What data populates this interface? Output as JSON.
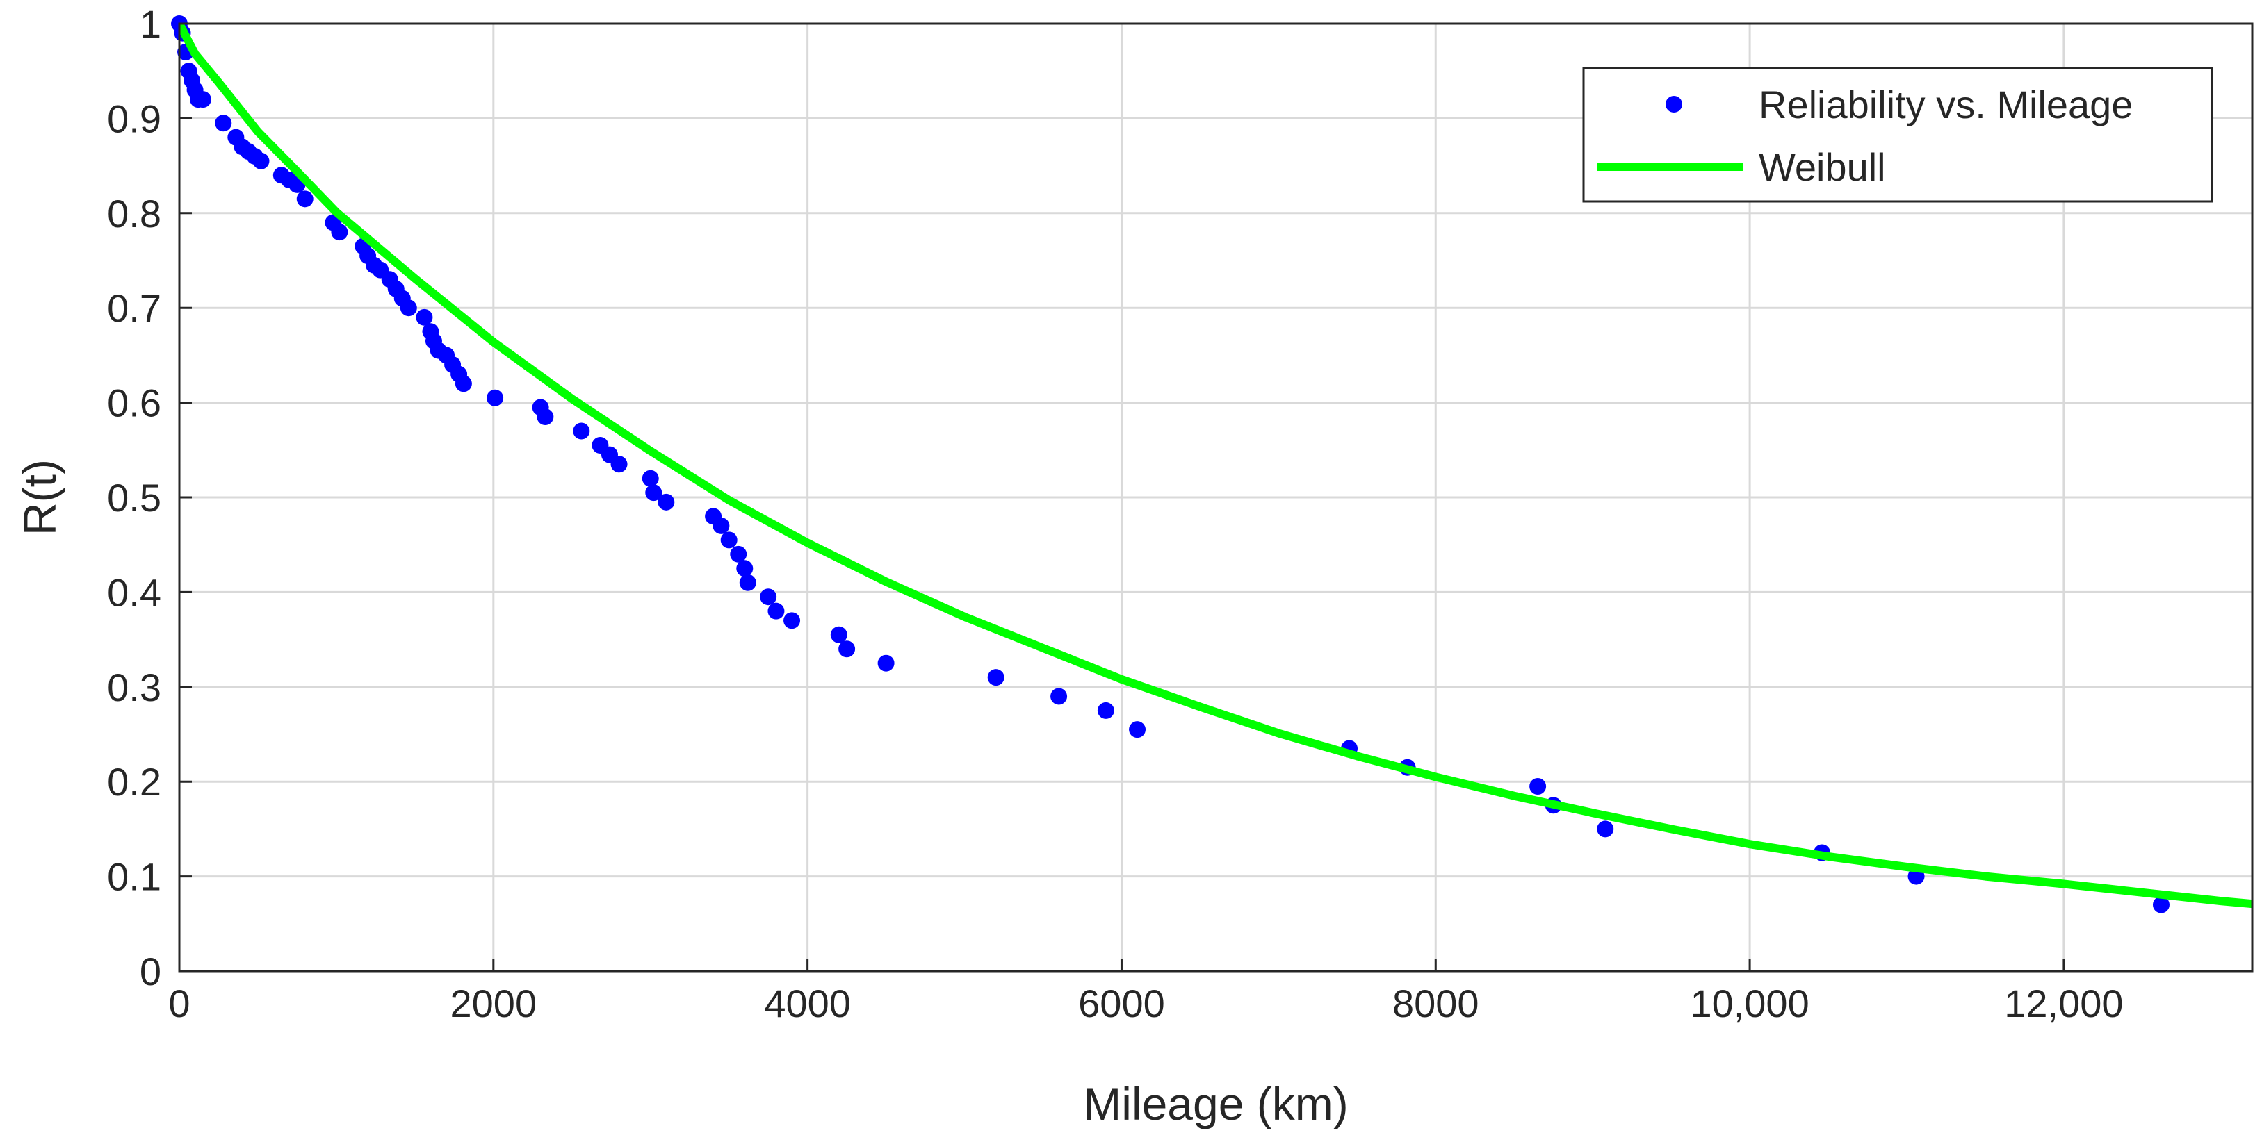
{
  "chart_data": {
    "type": "scatter",
    "xlabel": "Mileage (km)",
    "ylabel": "R(t)",
    "xlim": [
      0,
      13200
    ],
    "ylim": [
      0,
      1
    ],
    "grid": true,
    "legend_position": "top-right",
    "x_ticks": [
      0,
      2000,
      4000,
      6000,
      8000,
      10000,
      12000
    ],
    "x_tick_labels": [
      "0",
      "2000",
      "4000",
      "6000",
      "8000",
      "10,000",
      "12,000"
    ],
    "y_ticks": [
      0,
      0.1,
      0.2,
      0.3,
      0.4,
      0.5,
      0.6,
      0.7,
      0.8,
      0.9,
      1
    ],
    "y_tick_labels": [
      "0",
      "0.1",
      "0.2",
      "0.3",
      "0.4",
      "0.5",
      "0.6",
      "0.7",
      "0.8",
      "0.9",
      "1"
    ],
    "series": [
      {
        "name": "Reliability vs. Mileage",
        "kind": "scatter",
        "color": "#0000ff",
        "x": [
          0,
          20,
          40,
          60,
          80,
          100,
          120,
          150,
          280,
          360,
          400,
          440,
          480,
          520,
          650,
          700,
          750,
          800,
          980,
          1020,
          1170,
          1200,
          1240,
          1280,
          1340,
          1380,
          1420,
          1460,
          1560,
          1600,
          1620,
          1650,
          1700,
          1740,
          1780,
          1810,
          2010,
          2300,
          2330,
          2560,
          2680,
          2740,
          2800,
          3000,
          3020,
          3100,
          3400,
          3450,
          3500,
          3560,
          3600,
          3620,
          3750,
          3800,
          3900,
          4200,
          4250,
          4500,
          5200,
          5600,
          5900,
          6100,
          7450,
          7820,
          8650,
          8750,
          9080,
          10460,
          11060,
          12620
        ],
        "y": [
          1.0,
          0.99,
          0.97,
          0.95,
          0.94,
          0.93,
          0.92,
          0.92,
          0.895,
          0.88,
          0.87,
          0.865,
          0.86,
          0.855,
          0.84,
          0.835,
          0.83,
          0.815,
          0.79,
          0.78,
          0.765,
          0.755,
          0.745,
          0.74,
          0.73,
          0.72,
          0.71,
          0.7,
          0.69,
          0.675,
          0.665,
          0.655,
          0.65,
          0.64,
          0.63,
          0.62,
          0.605,
          0.595,
          0.585,
          0.57,
          0.555,
          0.545,
          0.535,
          0.52,
          0.505,
          0.495,
          0.48,
          0.47,
          0.455,
          0.44,
          0.425,
          0.41,
          0.395,
          0.38,
          0.37,
          0.355,
          0.34,
          0.325,
          0.31,
          0.29,
          0.275,
          0.255,
          0.235,
          0.215,
          0.195,
          0.175,
          0.15,
          0.125,
          0.1,
          0.07
        ]
      },
      {
        "name": "Weibull",
        "kind": "line",
        "color": "#00ff00",
        "x": [
          0,
          100,
          250,
          500,
          750,
          1000,
          1500,
          2000,
          2500,
          3000,
          3500,
          4000,
          4500,
          5000,
          5500,
          6000,
          6500,
          7000,
          7500,
          8000,
          8500,
          9000,
          9500,
          10000,
          10500,
          11000,
          11500,
          12000,
          12500,
          13000,
          13200
        ],
        "y": [
          1.0,
          0.968,
          0.938,
          0.886,
          0.844,
          0.801,
          0.731,
          0.664,
          0.604,
          0.549,
          0.497,
          0.452,
          0.411,
          0.374,
          0.341,
          0.308,
          0.279,
          0.251,
          0.227,
          0.205,
          0.185,
          0.167,
          0.15,
          0.134,
          0.121,
          0.11,
          0.1,
          0.092,
          0.083,
          0.074,
          0.071
        ]
      }
    ]
  }
}
